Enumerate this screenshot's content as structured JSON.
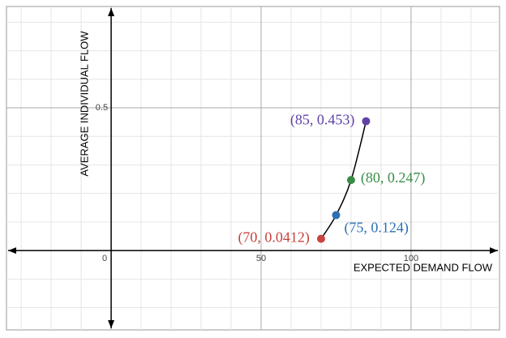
{
  "chart_data": {
    "type": "scatter",
    "x_label": "EXPECTED DEMAND FLOW",
    "y_label": "AVERAGE INDIVIDUAL FLOW",
    "x": [
      70,
      75,
      80,
      85
    ],
    "values": [
      0.0412,
      0.124,
      0.247,
      0.453
    ],
    "value_labels": [
      "(70, 0.0412)",
      "(75, 0.124)",
      "(80, 0.247)",
      "(85, 0.453)"
    ],
    "point_colors": [
      "#c74440",
      "#2d70b3",
      "#388c46",
      "#6042a6"
    ],
    "line_color": "#000000",
    "xlim": [
      -34.9,
      129.5
    ],
    "ylim": [
      -0.278,
      0.855
    ],
    "xticks": [
      0,
      50,
      100
    ],
    "yticks": [
      0.5
    ],
    "grid": true
  }
}
